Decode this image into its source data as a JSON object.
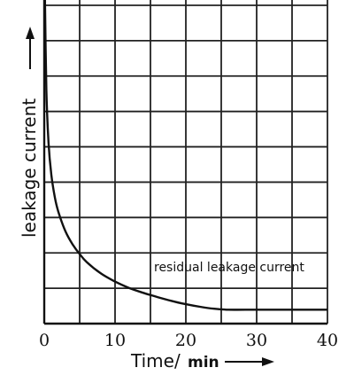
{
  "chart_data": {
    "type": "line",
    "title": "",
    "xlabel": "Time/",
    "xlabel_unit": "min",
    "ylabel": "leakage current",
    "xlim": [
      0,
      40
    ],
    "x_ticks": [
      "0",
      "10",
      "20",
      "30",
      "40"
    ],
    "grid": true,
    "series": [
      {
        "x": [
          0.1,
          0.3,
          0.6,
          1,
          1.5,
          2,
          3,
          4,
          5,
          6,
          8,
          10,
          12,
          14,
          16,
          18,
          20,
          22,
          24,
          26,
          30,
          35,
          40
        ],
        "y": [
          1.0,
          0.72,
          0.56,
          0.46,
          0.39,
          0.345,
          0.285,
          0.245,
          0.215,
          0.19,
          0.155,
          0.13,
          0.11,
          0.095,
          0.082,
          0.07,
          0.06,
          0.052,
          0.046,
          0.043,
          0.043,
          0.043,
          0.043
        ]
      }
    ],
    "annotations": [
      {
        "text": "residual leakage current",
        "x": 31,
        "y": 0.075
      }
    ],
    "axis_arrows": true
  }
}
